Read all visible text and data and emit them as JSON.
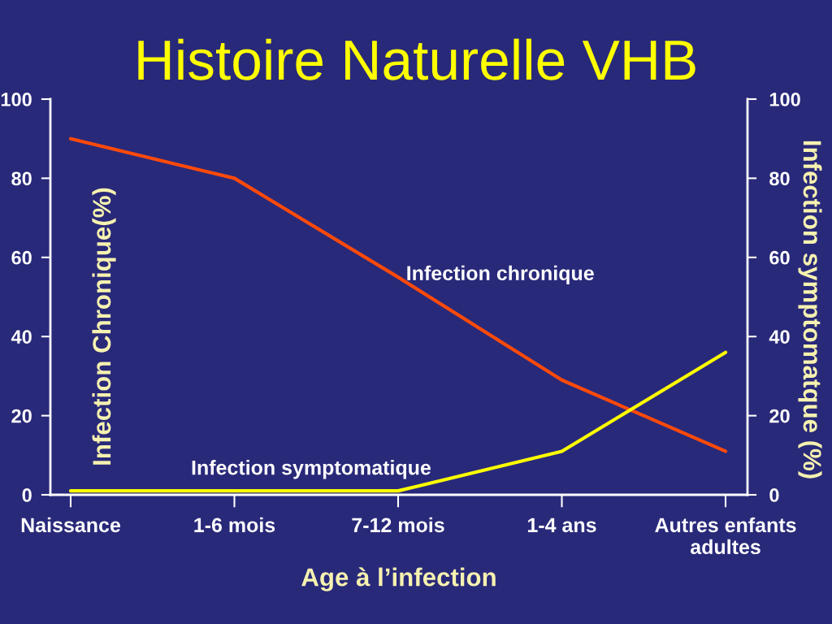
{
  "chart_data": {
    "type": "line",
    "title": "Histoire Naturelle VHB",
    "xlabel": "Age à l’infection",
    "ylabel": "Infection Chronique(%)",
    "y2label": "Infection symptomatque (%)",
    "categories": [
      "Naissance",
      "1-6 mois",
      "7-12 mois",
      "1-4 ans",
      "Autres enfants\nadultes"
    ],
    "series": [
      {
        "name": "Infection chronique",
        "color": "#ff4a0a",
        "values": [
          90,
          80,
          55,
          29,
          11
        ]
      },
      {
        "name": "Infection symptomatique",
        "color": "#ffff00",
        "values": [
          1,
          1,
          1,
          11,
          36
        ],
        "axis": "y2"
      }
    ],
    "ylim": [
      0,
      100
    ],
    "yticks": [
      0,
      20,
      40,
      60,
      80,
      100
    ],
    "y2lim": [
      0,
      100
    ],
    "y2ticks": [
      0,
      20,
      40,
      60,
      80,
      100
    ],
    "line_style": "solid"
  }
}
